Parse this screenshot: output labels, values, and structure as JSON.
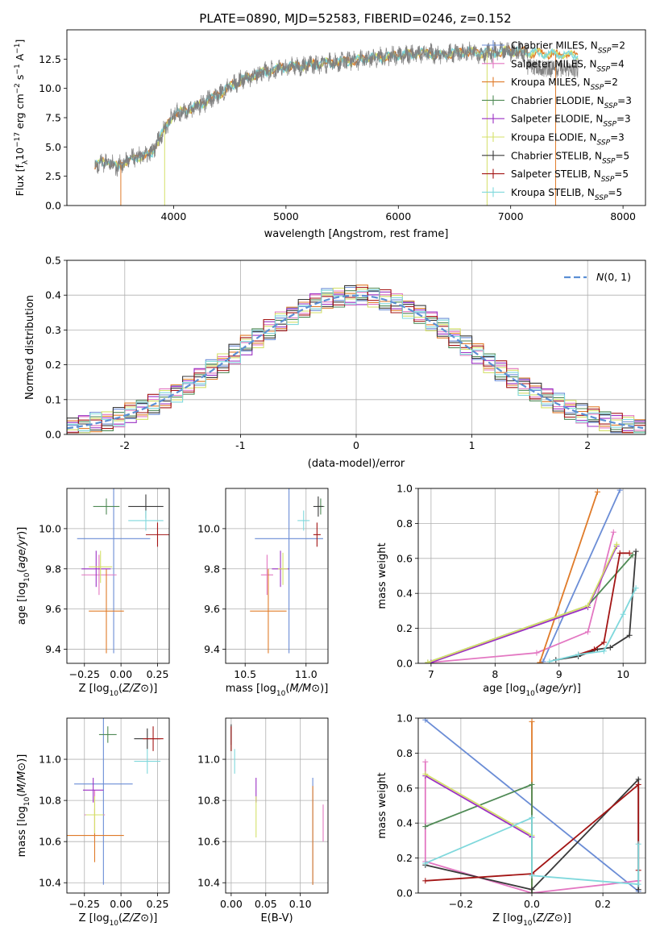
{
  "figure_title": "PLATE=0890, MJD=52583, FIBERID=0246, z=0.152",
  "colors": {
    "Chabrier MILES": "#6b8dd6",
    "Salpeter MILES": "#e377c2",
    "Kroupa MILES": "#e07b29",
    "Chabrier ELODIE": "#4f8a55",
    "Salpeter ELODIE": "#9b30c4",
    "Kroupa ELODIE": "#d4e06a",
    "Chabrier STELIB": "#3a3a3a",
    "Salpeter STELIB": "#a31515",
    "Kroupa STELIB": "#7fd8dc",
    "data": "#808080",
    "normal": "#5b8fd4"
  },
  "chart_data": [
    {
      "id": "spectrum",
      "type": "line",
      "title": "PLATE=0890, MJD=52583, FIBERID=0246, z=0.152",
      "xlabel": "wavelength [Angstrom, rest frame]",
      "ylabel_parts": [
        "Flux [f",
        "λ",
        "10",
        "−17",
        " erg cm",
        "−2",
        " s",
        "−1",
        " A",
        "−1",
        "]"
      ],
      "xlim": [
        3050,
        8200
      ],
      "ylim": [
        0,
        15
      ],
      "xticks": [
        4000,
        5000,
        6000,
        7000,
        8000
      ],
      "yticks": [
        0.0,
        2.5,
        5.0,
        7.5,
        10.0,
        12.5
      ],
      "ytick_labels": [
        "0.0",
        "2.5",
        "5.0",
        "7.5",
        "10.0",
        "12.5"
      ],
      "grid": false,
      "legend_position": "upper-right",
      "continuum": {
        "x": [
          3300,
          3400,
          3500,
          3600,
          3700,
          3800,
          3900,
          4000,
          4200,
          4400,
          4600,
          4800,
          5000,
          5200,
          5400,
          5600,
          5800,
          6000,
          6200,
          6400,
          6600,
          6800,
          7000,
          7200,
          7400
        ],
        "y": [
          3.5,
          3.8,
          3.3,
          3.9,
          4.2,
          4.4,
          6.2,
          7.8,
          8.4,
          9.5,
          10.7,
          11.4,
          11.8,
          12.0,
          12.2,
          12.4,
          12.6,
          12.8,
          13.0,
          12.9,
          13.1,
          13.0,
          13.2,
          13.0,
          12.9
        ]
      },
      "series": [
        {
          "name": "Chabrier MILES",
          "nssp": "2"
        },
        {
          "name": "Salpeter MILES",
          "nssp": "4"
        },
        {
          "name": "Kroupa MILES",
          "nssp": "2"
        },
        {
          "name": "Chabrier ELODIE",
          "nssp": "3"
        },
        {
          "name": "Salpeter ELODIE",
          "nssp": "3"
        },
        {
          "name": "Kroupa ELODIE",
          "nssp": "3"
        },
        {
          "name": "Chabrier STELIB",
          "nssp": "5"
        },
        {
          "name": "Salpeter STELIB",
          "nssp": "5"
        },
        {
          "name": "Kroupa STELIB",
          "nssp": "5"
        }
      ]
    },
    {
      "id": "residuals",
      "type": "step",
      "xlabel": "(data-model)/error",
      "ylabel": "Normed distribution",
      "xlim": [
        -2.5,
        2.5
      ],
      "ylim": [
        0,
        0.5
      ],
      "xticks": [
        -2,
        -1,
        0,
        1,
        2
      ],
      "yticks": [
        0.0,
        0.1,
        0.2,
        0.3,
        0.4,
        0.5
      ],
      "ytick_labels": [
        "0.0",
        "0.1",
        "0.2",
        "0.3",
        "0.4",
        "0.5"
      ],
      "grid": true,
      "legend_position": "upper-right",
      "legend_label": "N(0, 1)",
      "bin_edges_start": -2.5,
      "bin_width": 0.1,
      "offsets": [
        [
          0.004,
          -0.012,
          0.02,
          -0.006,
          0.015,
          -0.009,
          0.01,
          -0.018,
          0.007,
          0.013
        ],
        [
          -0.008,
          0.016,
          -0.004,
          0.011,
          -0.017,
          0.006,
          -0.013,
          0.009,
          0.018,
          -0.005
        ],
        [
          0.012,
          -0.005,
          -0.015,
          0.008,
          0.004,
          0.019,
          -0.01,
          -0.003,
          -0.012,
          0.014
        ],
        [
          -0.015,
          0.007,
          0.012,
          -0.018,
          0.009,
          -0.004,
          0.016,
          -0.011,
          0.003,
          -0.008
        ],
        [
          0.009,
          0.018,
          -0.008,
          0.005,
          -0.012,
          -0.016,
          0.004,
          0.014,
          -0.009,
          0.011
        ],
        [
          -0.004,
          -0.016,
          0.009,
          0.016,
          -0.006,
          0.012,
          -0.018,
          0.006,
          0.015,
          -0.013
        ],
        [
          0.017,
          0.003,
          -0.012,
          -0.009,
          0.018,
          -0.007,
          0.011,
          -0.015,
          -0.004,
          0.008
        ],
        [
          -0.011,
          0.01,
          0.006,
          -0.014,
          -0.003,
          0.015,
          -0.006,
          0.018,
          -0.016,
          0.004
        ],
        [
          0.006,
          -0.009,
          0.017,
          0.002,
          -0.015,
          0.008,
          0.013,
          -0.007,
          0.011,
          -0.017
        ]
      ]
    },
    {
      "id": "age_vs_Z",
      "type": "errorbar",
      "xlabel": "Z [log10(Z/Z⊙)]",
      "ylabel": "age  [log10(age/yr)]",
      "xlim": [
        -0.37,
        0.33
      ],
      "ylim": [
        9.33,
        10.2
      ],
      "xticks": [
        -0.25,
        0.0,
        0.25
      ],
      "xtick_labels": [
        "−0.25",
        "0.00",
        "0.25"
      ],
      "yticks": [
        9.4,
        9.6,
        9.8,
        10.0
      ],
      "ytick_labels": [
        "9.4",
        "9.6",
        "9.8",
        "10.0"
      ],
      "grid": true,
      "points": [
        {
          "x": -0.05,
          "y": 9.95,
          "xerr": 0.25,
          "yerr": 0.57
        },
        {
          "x": -0.15,
          "y": 9.77,
          "xerr": 0.12,
          "yerr": 0.1
        },
        {
          "x": -0.1,
          "y": 9.59,
          "xerr": 0.12,
          "yerr": 0.21
        },
        {
          "x": -0.1,
          "y": 10.11,
          "xerr": 0.09,
          "yerr": 0.04
        },
        {
          "x": -0.17,
          "y": 9.8,
          "xerr": 0.1,
          "yerr": 0.09
        },
        {
          "x": -0.14,
          "y": 9.81,
          "xerr": 0.08,
          "yerr": 0.08
        },
        {
          "x": 0.17,
          "y": 10.11,
          "xerr": 0.12,
          "yerr": 0.06
        },
        {
          "x": 0.25,
          "y": 9.97,
          "xerr": 0.08,
          "yerr": 0.06
        },
        {
          "x": 0.17,
          "y": 10.04,
          "xerr": 0.12,
          "yerr": 0.05
        }
      ]
    },
    {
      "id": "age_vs_mass",
      "type": "errorbar",
      "xlabel": "mass [log10(M/M⊙)]",
      "xlim": [
        10.34,
        11.18
      ],
      "ylim": [
        9.33,
        10.2
      ],
      "xticks": [
        10.5,
        11.0
      ],
      "xtick_labels": [
        "10.5",
        "11.0"
      ],
      "yticks": [
        9.4,
        9.6,
        9.8,
        10.0
      ],
      "ytick_labels": [
        "9.4",
        "9.6",
        "9.8",
        "10.0"
      ],
      "grid": true,
      "points": [
        {
          "x": 10.86,
          "y": 9.95,
          "xerr": 0.28,
          "yerr": 0.57
        },
        {
          "x": 10.68,
          "y": 9.77,
          "xerr": 0.05,
          "yerr": 0.1
        },
        {
          "x": 10.69,
          "y": 9.59,
          "xerr": 0.15,
          "yerr": 0.21
        },
        {
          "x": 11.12,
          "y": 10.11,
          "xerr": 0.03,
          "yerr": 0.04
        },
        {
          "x": 10.79,
          "y": 9.8,
          "xerr": 0.07,
          "yerr": 0.09
        },
        {
          "x": 10.81,
          "y": 9.8,
          "xerr": 0.04,
          "yerr": 0.08
        },
        {
          "x": 11.1,
          "y": 10.11,
          "xerr": 0.04,
          "yerr": 0.05
        },
        {
          "x": 11.09,
          "y": 9.97,
          "xerr": 0.03,
          "yerr": 0.06
        },
        {
          "x": 10.98,
          "y": 10.04,
          "xerr": 0.05,
          "yerr": 0.05
        }
      ]
    },
    {
      "id": "massweight_vs_age",
      "type": "line",
      "xlabel": "age  [log10(age/yr)]",
      "ylabel": "mass weight",
      "xlim": [
        6.8,
        10.35
      ],
      "ylim": [
        0,
        1
      ],
      "xticks": [
        7,
        8,
        9,
        10
      ],
      "yticks": [
        0.0,
        0.2,
        0.4,
        0.6,
        0.8,
        1.0
      ],
      "ytick_labels": [
        "0.0",
        "0.2",
        "0.4",
        "0.6",
        "0.8",
        "1.0"
      ],
      "grid": true,
      "series": [
        {
          "x": [
            8.75,
            9.95
          ],
          "y": [
            0.01,
            0.99
          ]
        },
        {
          "x": [
            7.0,
            8.65,
            9.45,
            9.85
          ],
          "y": [
            0.005,
            0.06,
            0.18,
            0.75
          ]
        },
        {
          "x": [
            8.7,
            9.6
          ],
          "y": [
            0.005,
            0.98
          ]
        },
        {
          "x": [
            6.95,
            9.45,
            10.15
          ],
          "y": [
            0.005,
            0.33,
            0.62
          ]
        },
        {
          "x": [
            7.0,
            9.45,
            9.9
          ],
          "y": [
            0.005,
            0.32,
            0.67
          ]
        },
        {
          "x": [
            6.95,
            9.45,
            9.9
          ],
          "y": [
            0.005,
            0.33,
            0.68
          ]
        },
        {
          "x": [
            8.95,
            9.3,
            9.6,
            9.8,
            10.1,
            10.2
          ],
          "y": [
            0.02,
            0.04,
            0.08,
            0.09,
            0.16,
            0.64
          ]
        },
        {
          "x": [
            9.3,
            9.55,
            9.7,
            9.95,
            10.1
          ],
          "y": [
            0.05,
            0.08,
            0.12,
            0.63,
            0.63
          ]
        },
        {
          "x": [
            8.85,
            9.3,
            9.7,
            10.0,
            10.2
          ],
          "y": [
            0.01,
            0.05,
            0.07,
            0.28,
            0.43
          ]
        }
      ]
    },
    {
      "id": "mass_vs_Z",
      "type": "errorbar",
      "xlabel": "Z [log10(Z/Z⊙)]",
      "ylabel": "mass [log10(M/M⊙)]",
      "xlim": [
        -0.37,
        0.33
      ],
      "ylim": [
        10.35,
        11.2
      ],
      "xticks": [
        -0.25,
        0.0,
        0.25
      ],
      "xtick_labels": [
        "−0.25",
        "0.00",
        "0.25"
      ],
      "yticks": [
        10.4,
        10.6,
        10.8,
        11.0
      ],
      "ytick_labels": [
        "10.4",
        "10.6",
        "10.8",
        "11.0"
      ],
      "grid": true,
      "points": [
        {
          "x": -0.12,
          "y": 10.88,
          "xerr": 0.2,
          "yerr": 0.49
        },
        {
          "x": -0.18,
          "y": 10.73,
          "xerr": 0.07,
          "yerr": 0.12
        },
        {
          "x": -0.18,
          "y": 10.63,
          "xerr": 0.2,
          "yerr": 0.13
        },
        {
          "x": -0.09,
          "y": 11.12,
          "xerr": 0.06,
          "yerr": 0.04
        },
        {
          "x": -0.19,
          "y": 10.85,
          "xerr": 0.07,
          "yerr": 0.06
        },
        {
          "x": -0.18,
          "y": 10.73,
          "xerr": 0.06,
          "yerr": 0.09
        },
        {
          "x": 0.18,
          "y": 11.1,
          "xerr": 0.09,
          "yerr": 0.05
        },
        {
          "x": 0.22,
          "y": 11.1,
          "xerr": 0.07,
          "yerr": 0.06
        },
        {
          "x": 0.18,
          "y": 10.99,
          "xerr": 0.09,
          "yerr": 0.06
        }
      ]
    },
    {
      "id": "mass_vs_ebv",
      "type": "errorbar",
      "xlabel": "E(B-V)",
      "xlim": [
        -0.008,
        0.14
      ],
      "ylim": [
        10.35,
        11.2
      ],
      "xticks": [
        0.0,
        0.05,
        0.1
      ],
      "xtick_labels": [
        "0.00",
        "0.05",
        "0.10"
      ],
      "yticks": [
        10.4,
        10.6,
        10.8,
        11.0
      ],
      "ytick_labels": [
        "10.4",
        "10.6",
        "10.8",
        "11.0"
      ],
      "grid": true,
      "points": [
        {
          "x": 0.118,
          "y": 10.65,
          "yerr": 0.26
        },
        {
          "x": 0.133,
          "y": 10.69,
          "yerr": 0.09
        },
        {
          "x": 0.118,
          "y": 10.63,
          "yerr": 0.24
        },
        {
          "x": 0.0,
          "y": 11.1,
          "yerr": 0.06
        },
        {
          "x": 0.036,
          "y": 10.85,
          "yerr": 0.06
        },
        {
          "x": 0.036,
          "y": 10.72,
          "yerr": 0.1
        },
        {
          "x": 0.0,
          "y": 11.12,
          "yerr": 0.05
        },
        {
          "x": 0.0,
          "y": 11.1,
          "yerr": 0.06
        },
        {
          "x": 0.005,
          "y": 10.99,
          "yerr": 0.06
        }
      ]
    },
    {
      "id": "massweight_vs_Z",
      "type": "line",
      "xlabel": "Z [log10(Z/Z⊙)]",
      "ylabel": "mass weight",
      "xlim": [
        -0.32,
        0.32
      ],
      "ylim": [
        0,
        1
      ],
      "xticks": [
        -0.2,
        0.0,
        0.2
      ],
      "xtick_labels": [
        "−0.2",
        "0.0",
        "0.2"
      ],
      "yticks": [
        0.0,
        0.2,
        0.4,
        0.6,
        0.8,
        1.0
      ],
      "ytick_labels": [
        "0.0",
        "0.2",
        "0.4",
        "0.6",
        "0.8",
        "1.0"
      ],
      "grid": true,
      "series": [
        {
          "x": [
            -0.3,
            0.3
          ],
          "y": [
            0.99,
            0.01
          ]
        },
        {
          "x": [
            -0.3,
            -0.3,
            0.0,
            0.3
          ],
          "y": [
            0.75,
            0.18,
            0.0,
            0.07
          ]
        },
        {
          "x": [
            0.0,
            0.0
          ],
          "y": [
            0.0,
            0.98
          ]
        },
        {
          "x": [
            -0.3,
            0.0,
            0.0
          ],
          "y": [
            0.38,
            0.62,
            0.0
          ]
        },
        {
          "x": [
            -0.3,
            0.0
          ],
          "y": [
            0.67,
            0.32
          ]
        },
        {
          "x": [
            -0.3,
            0.0
          ],
          "y": [
            0.68,
            0.33
          ]
        },
        {
          "x": [
            -0.3,
            0.0,
            0.3,
            0.3
          ],
          "y": [
            0.16,
            0.02,
            0.65,
            0.02
          ]
        },
        {
          "x": [
            -0.3,
            0.0,
            0.3,
            0.3
          ],
          "y": [
            0.07,
            0.11,
            0.62,
            0.13
          ]
        },
        {
          "x": [
            -0.3,
            0.0,
            0.0,
            0.3,
            0.3
          ],
          "y": [
            0.17,
            0.43,
            0.1,
            0.05,
            0.28
          ]
        }
      ]
    }
  ]
}
